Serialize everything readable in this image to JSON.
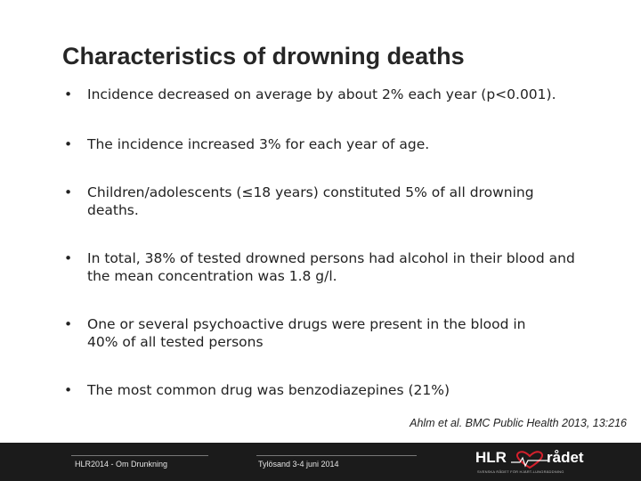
{
  "slide": {
    "title": "Characteristics of drowning deaths",
    "bullets": [
      {
        "marker": "•",
        "text": "Incidence decreased on average by about 2% each year (p<0.001)."
      },
      {
        "marker": "•",
        "text": "The incidence increased 3% for each year of age."
      },
      {
        "marker": "•",
        "text": "Children/adolescents (≤18 years) constituted 5% of all drowning deaths."
      },
      {
        "marker": "•",
        "text": "In total, 38% of tested drowned persons had alcohol in their blood and the mean concentration was 1.8 g/l."
      },
      {
        "marker": "•",
        "text": "One or several psychoactive drugs were present in the blood in 40% of all tested persons"
      },
      {
        "marker": "•",
        "text": "The most common drug was benzodiazepines (21%)"
      }
    ],
    "citation": "Ahlm et al. BMC Public Health 2013, 13:216"
  },
  "footer": {
    "left_text": "HLR2014 - Om Drunkning",
    "center_text": "Tylösand 3-4 juni 2014",
    "logo": {
      "word_left": "HLR",
      "word_right": "rådet",
      "tagline": "SVENSKA RÅDET FÖR HJÄRT-LUNGRÄDDNING",
      "heart_color": "#d4202c"
    }
  }
}
